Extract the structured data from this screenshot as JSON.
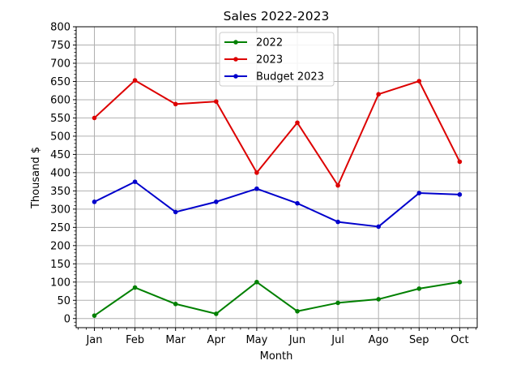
{
  "chart_data": {
    "type": "line",
    "title": "Sales 2022-2023",
    "xlabel": "Month",
    "ylabel": "Thousand $",
    "categories": [
      "Jan",
      "Feb",
      "Mar",
      "Apr",
      "May",
      "Jun",
      "Jul",
      "Ago",
      "Sep",
      "Oct"
    ],
    "ylim": [
      -25,
      800
    ],
    "yticks": [
      0,
      50,
      100,
      150,
      200,
      250,
      300,
      350,
      400,
      450,
      500,
      550,
      600,
      650,
      700,
      750,
      800
    ],
    "grid": true,
    "legend_position": "top-center",
    "series": [
      {
        "name": "2022",
        "color": "#008000",
        "marker": "dot",
        "values": [
          8,
          85,
          40,
          13,
          100,
          20,
          43,
          53,
          82,
          100
        ]
      },
      {
        "name": "2023",
        "color": "#dd0000",
        "marker": "dot",
        "values": [
          550,
          653,
          588,
          595,
          400,
          537,
          365,
          615,
          651,
          430
        ]
      },
      {
        "name": "Budget 2023",
        "color": "#0000cc",
        "marker": "dot",
        "values": [
          320,
          375,
          292,
          320,
          356,
          316,
          265,
          252,
          344,
          340
        ]
      }
    ]
  }
}
